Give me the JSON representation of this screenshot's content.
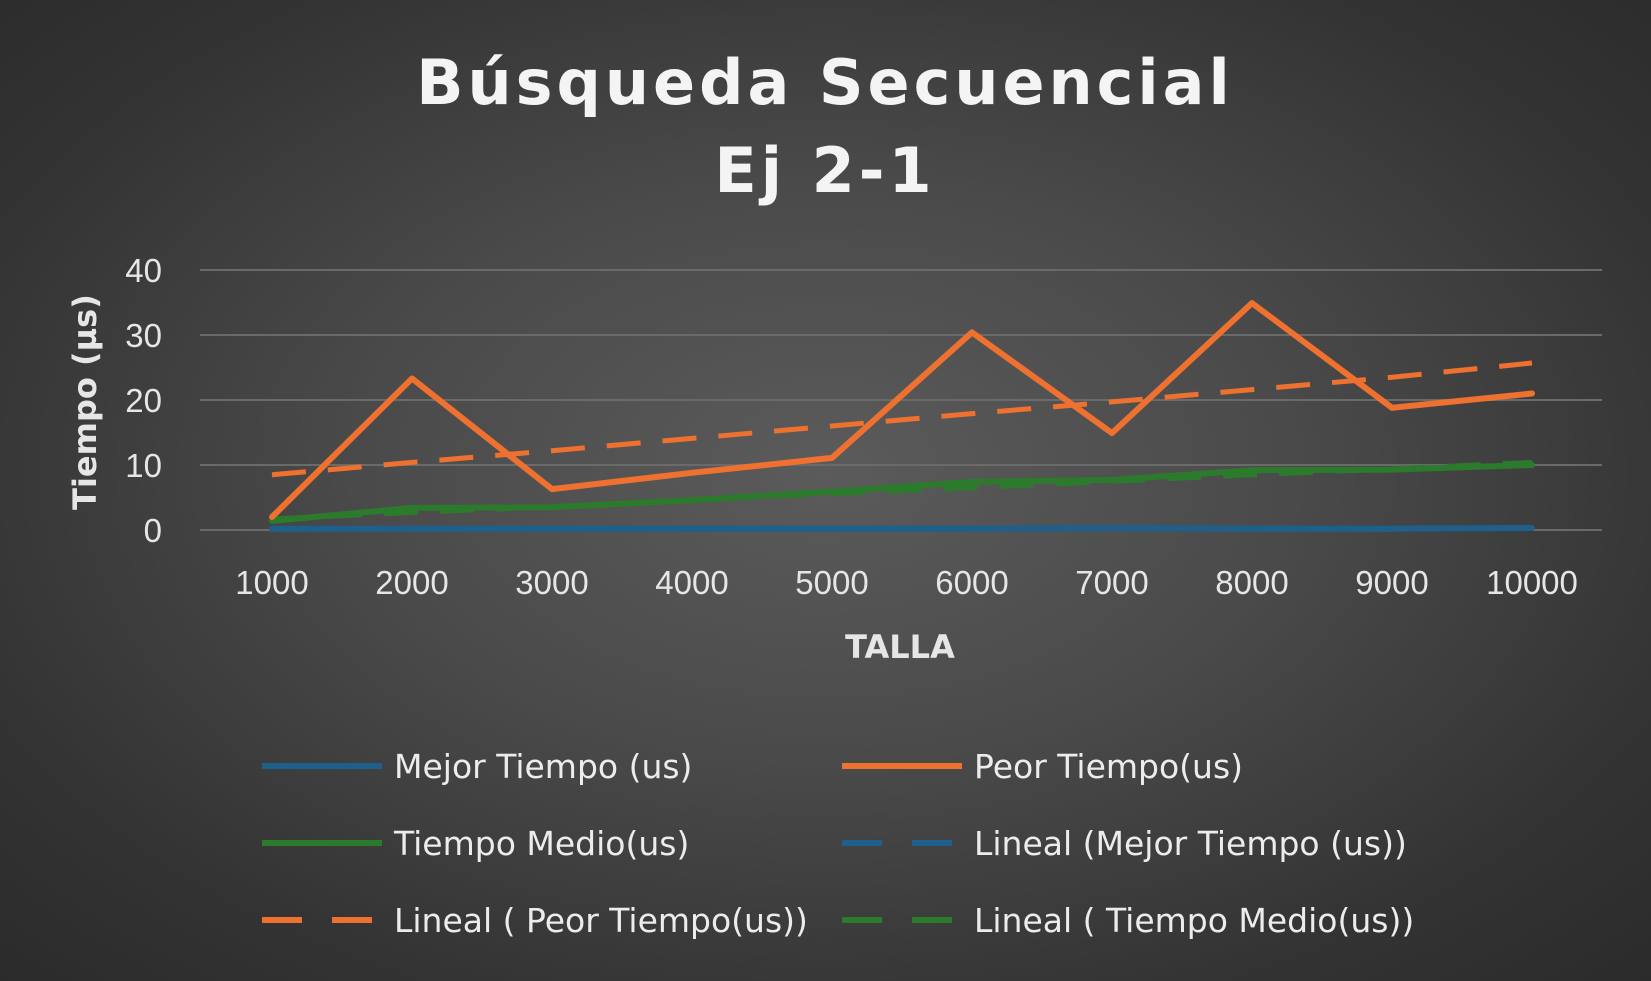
{
  "chart_data": {
    "type": "line",
    "title": [
      "Búsqueda Secuencial",
      "Ej 2-1"
    ],
    "xlabel": "TALLA",
    "ylabel": "Tiempo (µs)",
    "ylim": [
      0,
      40
    ],
    "yticks": [
      0,
      10,
      20,
      30,
      40
    ],
    "grid": true,
    "legend_position": "bottom",
    "x": [
      1000,
      2000,
      3000,
      4000,
      5000,
      6000,
      7000,
      8000,
      9000,
      10000
    ],
    "x_tick_labels": [
      "1000",
      "2000",
      "3000",
      "4000",
      "5000",
      "6000",
      "7000",
      "8000",
      "9000",
      "10000"
    ],
    "series": [
      {
        "name": "Mejor Tiempo (us)",
        "color": "#1f5f8b",
        "dash": "solid",
        "values": [
          0.2,
          0.2,
          0.2,
          0.2,
          0.2,
          0.2,
          0.3,
          0.2,
          0.2,
          0.3
        ]
      },
      {
        "name": "Peor Tiempo(us)",
        "color": "#ee7130",
        "dash": "solid",
        "values": [
          2,
          23.3,
          6.3,
          8.8,
          11.1,
          30.4,
          14.9,
          34.9,
          18.8,
          21
        ]
      },
      {
        "name": "Tiempo Medio(us)",
        "color": "#2c7a2c",
        "dash": "solid",
        "values": [
          1.4,
          3.4,
          3.5,
          4.6,
          5.9,
          7.4,
          7.7,
          9.2,
          9.3,
          10
        ]
      },
      {
        "name": "Lineal (Mejor Tiempo (us))",
        "color": "#1f5f8b",
        "dash": "dashed",
        "values": [
          0.2,
          0.21,
          0.22,
          0.22,
          0.23,
          0.24,
          0.25,
          0.26,
          0.27,
          0.28
        ]
      },
      {
        "name": "Lineal ( Peor Tiempo(us))",
        "color": "#ee7130",
        "dash": "dashed",
        "values": [
          8.5,
          10.4,
          12.2,
          14.1,
          16,
          17.9,
          19.7,
          21.6,
          23.5,
          25.7
        ]
      },
      {
        "name": "Lineal ( Tiempo Medio(us))",
        "color": "#2c7a2c",
        "dash": "dashed",
        "values": [
          1.7,
          2.7,
          3.6,
          4.6,
          5.6,
          6.5,
          7.5,
          8.5,
          9.4,
          10.4
        ]
      }
    ]
  }
}
